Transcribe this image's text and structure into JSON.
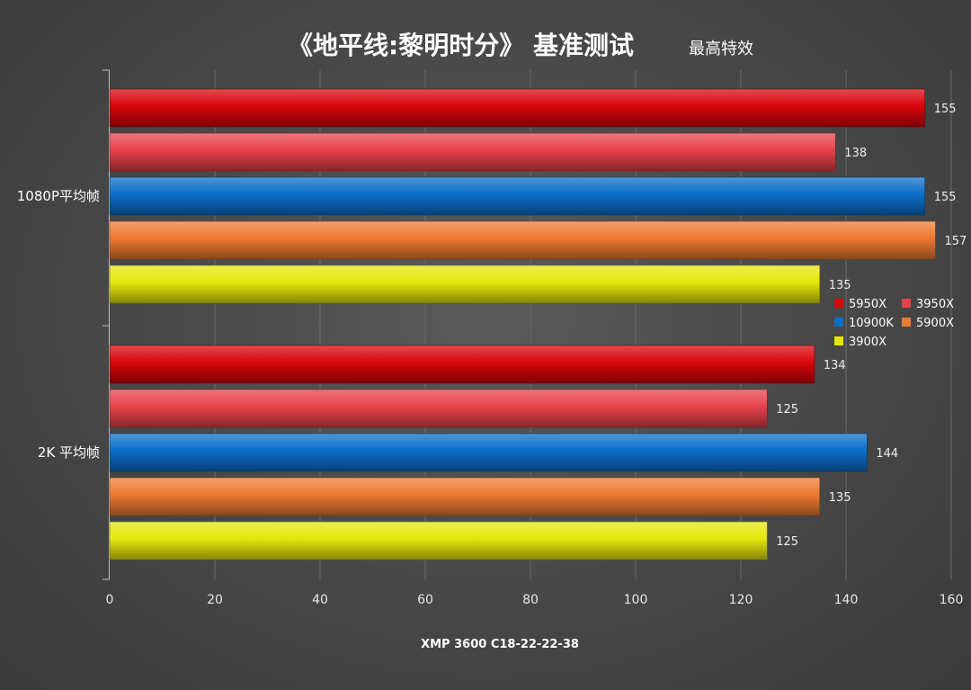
{
  "chart_data": {
    "type": "bar",
    "orientation": "horizontal",
    "title": "《地平线:黎明时分》 基准测试",
    "subtitle": "最高特效",
    "footnote": "XMP 3600 C18-22-22-38",
    "categories": [
      "1080P平均帧",
      "2K 平均帧"
    ],
    "xlim": [
      0,
      160
    ],
    "x_ticks": [
      0,
      20,
      40,
      60,
      80,
      100,
      120,
      140,
      160
    ],
    "grid": true,
    "legend_position": "right",
    "series": [
      {
        "name": "5950X",
        "color": "#d8050b",
        "values": [
          155,
          134
        ]
      },
      {
        "name": "3950X",
        "color": "#e8414a",
        "values": [
          138,
          125
        ]
      },
      {
        "name": "10900K",
        "color": "#0a6ec9",
        "values": [
          155,
          144
        ]
      },
      {
        "name": "5900X",
        "color": "#ee7a30",
        "values": [
          157,
          135
        ]
      },
      {
        "name": "3900X",
        "color": "#e6e60c",
        "values": [
          135,
          125
        ]
      }
    ]
  }
}
